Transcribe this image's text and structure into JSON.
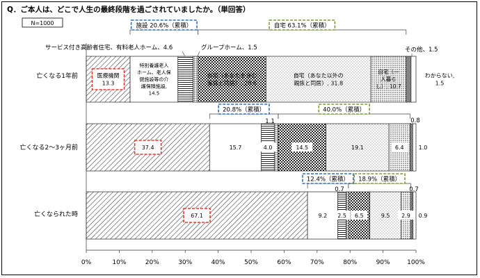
{
  "title": "Q．ご本人は、どこで人生の最終段階を過ごされていましたか。（単回答）",
  "sample_note": "N=1000",
  "colors": {
    "red_box": "#e03c31",
    "blue_box": "#2f6fb3",
    "green_box": "#7a9a3a",
    "axis": "#333333"
  },
  "chart_data": {
    "type": "bar",
    "orientation": "horizontal-stacked-percent",
    "xlim": [
      0,
      100
    ],
    "x_ticks": [
      "0%",
      "10%",
      "20%",
      "30%",
      "40%",
      "50%",
      "60%",
      "70%",
      "80%",
      "90%",
      "100%"
    ],
    "categories": [
      "亡くなる1年前",
      "亡くなる2〜3ヶ月前",
      "亡くなられた時"
    ],
    "series": [
      {
        "name": "医療機関",
        "values": [
          13.3,
          37.4,
          67.1
        ]
      },
      {
        "name": "特別養護老人ホーム、老人保健施設等の介護保険施設",
        "values": [
          14.5,
          15.7,
          9.2
        ]
      },
      {
        "name": "サービス付き高齢者住宅、有料老人ホーム",
        "values": [
          4.6,
          4.0,
          2.5
        ]
      },
      {
        "name": "グループホーム",
        "values": [
          1.5,
          1.1,
          0.7
        ]
      },
      {
        "name": "自宅（あなたを含む家族と同居）",
        "values": [
          20.6,
          14.5,
          6.5
        ]
      },
      {
        "name": "自宅（あなた以外の親族と同居）",
        "values": [
          31.8,
          19.1,
          9.5
        ]
      },
      {
        "name": "自宅（一人暮らし）",
        "values": [
          10.7,
          6.4,
          2.9
        ]
      },
      {
        "name": "その他",
        "values": [
          1.5,
          0.8,
          0.7
        ]
      },
      {
        "name": "わからない",
        "values": [
          1.5,
          1.0,
          0.9
        ]
      }
    ],
    "bar_labels": [
      [
        "医療機関\n13.3",
        "特別養護老人\nホーム、老人保\n健施設等の介\n護保険施設,\n14.5",
        "",
        "",
        "自宅（あなたを含む\n家族と同居）, 20.6",
        "自宅（あなた以外の\n親族と同居）, 31.8",
        "自宅（一\n人暮ら\nし）, 10.7",
        "",
        "わからない,\n1.5"
      ],
      [
        "37.4",
        "15.7",
        "4.0",
        "",
        "14.5",
        "19.1",
        "6.4",
        "",
        "1.0"
      ],
      [
        "67.1",
        "9.2",
        "2.5",
        "",
        "6.5",
        "9.5",
        "2.9",
        "",
        "0.9"
      ]
    ],
    "callouts": [
      "サービス付き高齢者住宅、有料老人ホーム、4.6",
      "グループホーム、1.5",
      "その他、1.5",
      "1.1",
      "0.8",
      "0.7",
      "0.7"
    ],
    "cumulative_boxes": [
      {
        "label": "施設 20.6%（累積）",
        "row": 0,
        "from": 13.3,
        "to": 33.9,
        "color": "blue"
      },
      {
        "label": "自宅 63.1%（累積）",
        "row": 0,
        "from": 33.9,
        "to": 97.0,
        "color": "green"
      },
      {
        "label": "20.8%（累積）",
        "row": 1,
        "from": 37.4,
        "to": 58.2,
        "color": "blue"
      },
      {
        "label": "40.0%（累積）",
        "row": 1,
        "from": 58.2,
        "to": 98.2,
        "color": "green"
      },
      {
        "label": "12.4%（累積）",
        "row": 2,
        "from": 67.1,
        "to": 79.5,
        "color": "blue"
      },
      {
        "label": "18.9%（累積）",
        "row": 2,
        "from": 79.5,
        "to": 98.4,
        "color": "green"
      }
    ],
    "highlighted_values": [
      "13.3",
      "37.4",
      "67.1"
    ],
    "grid": false,
    "legend": "none"
  }
}
